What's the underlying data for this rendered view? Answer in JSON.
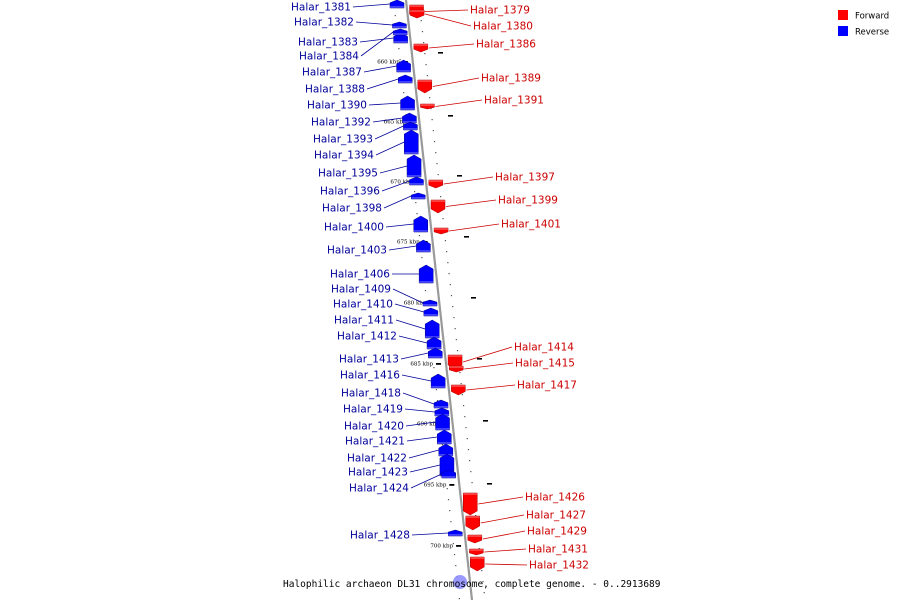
{
  "caption": "Halophilic archaeon DL31 chromosome, complete genome. - 0..2913689",
  "legend": [
    {
      "label": "Forward",
      "color": "#ff0000"
    },
    {
      "label": "Reverse",
      "color": "#0000ff"
    }
  ],
  "colors": {
    "forward": "#ff0000",
    "reverse": "#0000ff",
    "forward_label": "#cc0000",
    "reverse_label": "#000099",
    "backbone": "#999999"
  },
  "kbp_markers": [
    "660 kbp",
    "665 kbp",
    "670 kbp",
    "675 kbp",
    "680 kbp",
    "685 kbp",
    "690 kbp",
    "695 kbp",
    "700 kbp"
  ],
  "forward_genes": [
    "Halar_1379",
    "Halar_1380",
    "Halar_1386",
    "Halar_1389",
    "Halar_1391",
    "Halar_1397",
    "Halar_1399",
    "Halar_1401",
    "Halar_1414",
    "Halar_1415",
    "Halar_1417",
    "Halar_1426",
    "Halar_1427",
    "Halar_1429",
    "Halar_1431",
    "Halar_1432"
  ],
  "reverse_genes": [
    "Halar_1381",
    "Halar_1382",
    "Halar_1383",
    "Halar_1384",
    "Halar_1387",
    "Halar_1388",
    "Halar_1390",
    "Halar_1392",
    "Halar_1393",
    "Halar_1394",
    "Halar_1395",
    "Halar_1396",
    "Halar_1398",
    "Halar_1400",
    "Halar_1403",
    "Halar_1406",
    "Halar_1409",
    "Halar_1410",
    "Halar_1411",
    "Halar_1412",
    "Halar_1413",
    "Halar_1416",
    "Halar_1418",
    "Halar_1419",
    "Halar_1420",
    "Halar_1421",
    "Halar_1422",
    "Halar_1423",
    "Halar_1424",
    "Halar_1428"
  ]
}
